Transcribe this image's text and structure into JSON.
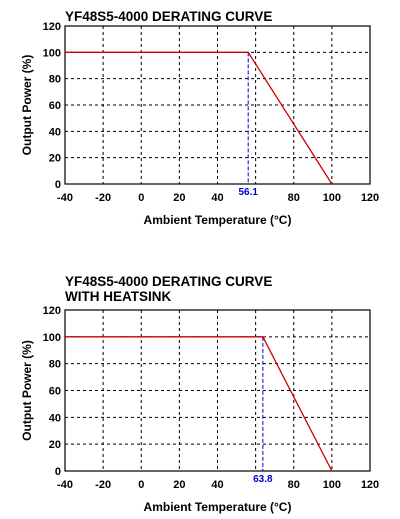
{
  "chart_data": [
    {
      "type": "line",
      "title_lines": [
        "YF48S5-4000  DERATING CURVE"
      ],
      "xlabel": "Ambient Temperature (°C)",
      "ylabel": "Output Power (%)",
      "xlim": [
        -40,
        120
      ],
      "ylim": [
        0,
        120
      ],
      "x_ticks": [
        -40,
        -20,
        0,
        20,
        40,
        60,
        80,
        100,
        120
      ],
      "x_tick_labels": [
        "-40",
        "-20",
        "0",
        "20",
        "40",
        "",
        "80",
        "100",
        "120"
      ],
      "y_ticks": [
        0,
        20,
        40,
        60,
        80,
        100,
        120
      ],
      "grid": true,
      "series": [
        {
          "color": "#cc0000",
          "x": [
            -40,
            56.1,
            100
          ],
          "y": [
            100,
            100,
            0
          ]
        }
      ],
      "annotation": {
        "x": 56.1,
        "label": "56.1",
        "color": "#0000cc"
      }
    },
    {
      "type": "line",
      "title_lines": [
        "YF48S5-4000  DERATING CURVE",
        "WITH HEATSINK"
      ],
      "xlabel": "Ambient Temperature (°C)",
      "ylabel": "Output Power (%)",
      "xlim": [
        -40,
        120
      ],
      "ylim": [
        0,
        120
      ],
      "x_ticks": [
        -40,
        -20,
        0,
        20,
        40,
        60,
        80,
        100,
        120
      ],
      "x_tick_labels": [
        "-40",
        "-20",
        "0",
        "20",
        "40",
        "",
        "80",
        "100",
        "120"
      ],
      "y_ticks": [
        0,
        20,
        40,
        60,
        80,
        100,
        120
      ],
      "grid": true,
      "series": [
        {
          "color": "#cc0000",
          "x": [
            -40,
            63.8,
            100
          ],
          "y": [
            100,
            100,
            0
          ]
        }
      ],
      "annotation": {
        "x": 63.8,
        "label": "63.8",
        "color": "#0000cc"
      }
    }
  ]
}
